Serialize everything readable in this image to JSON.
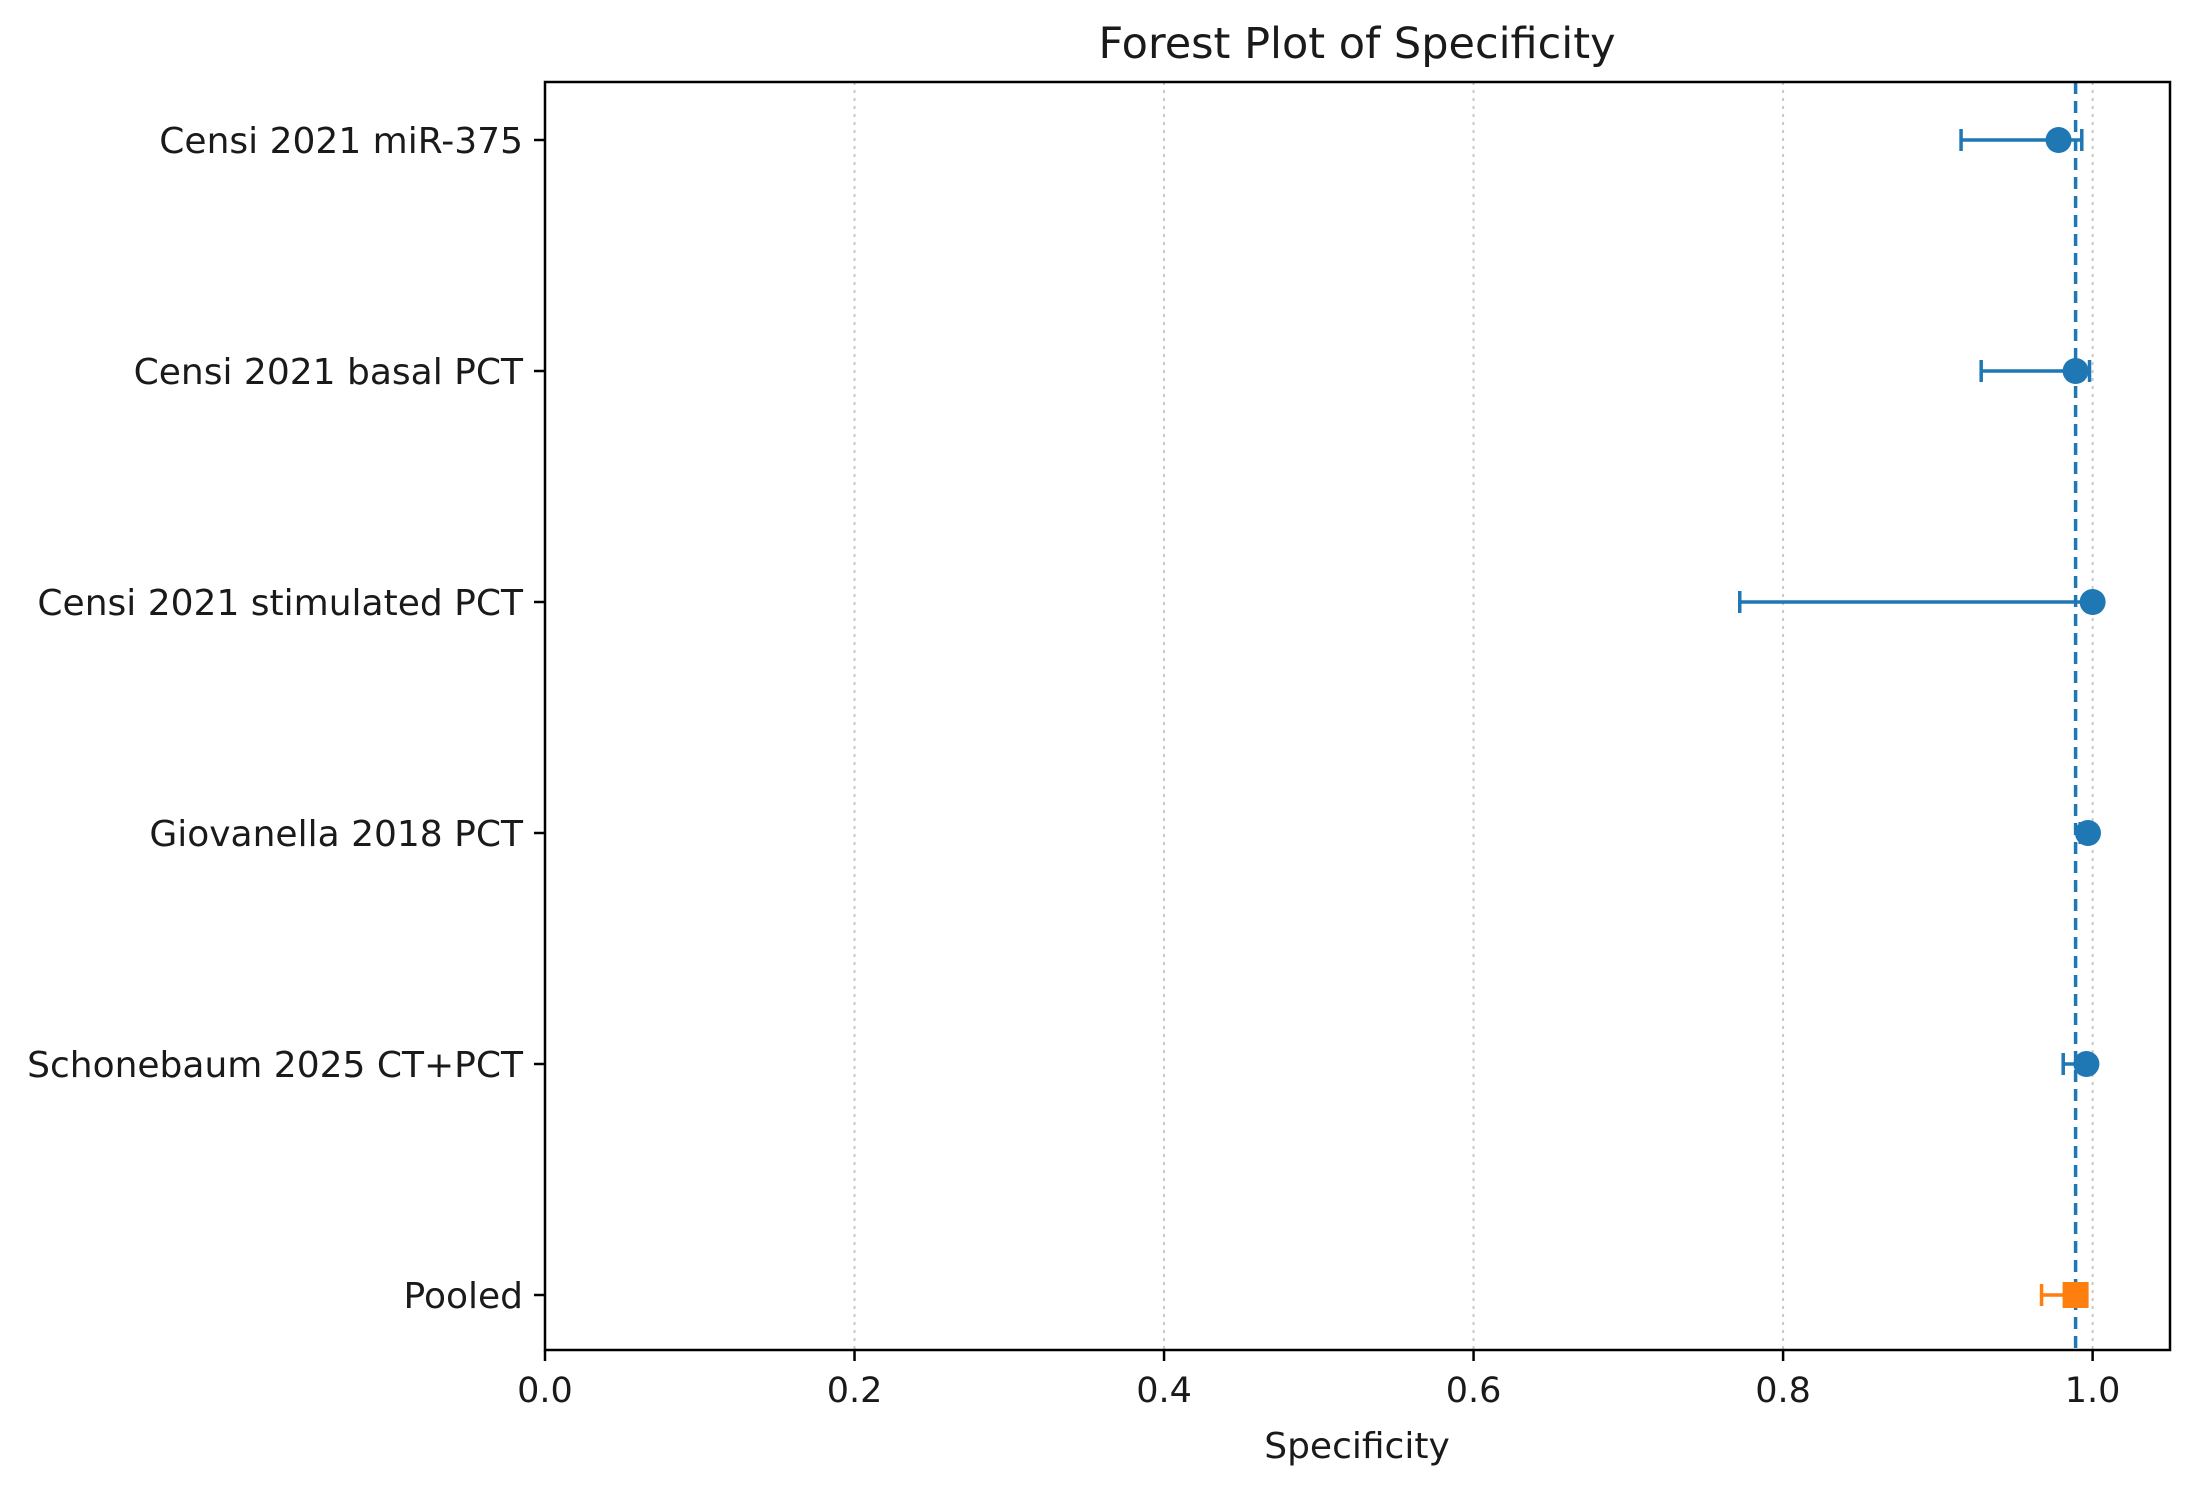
{
  "chart_data": {
    "type": "scatter",
    "subtype": "forest-plot",
    "title": "Forest Plot of Specificity",
    "xlabel": "Specificity",
    "ylabel": "",
    "xlim": [
      0.0,
      1.05
    ],
    "xticks": [
      "0.0",
      "0.2",
      "0.4",
      "0.6",
      "0.8",
      "1.0"
    ],
    "grid": "x-dotted",
    "pooled_reference_line": 0.989,
    "studies": [
      {
        "label": "Censi 2021 miR-375",
        "estimate": 0.978,
        "ci_low": 0.915,
        "ci_high": 0.993,
        "marker": "circle",
        "color": "#1f77b4"
      },
      {
        "label": "Censi 2021 basal PCT",
        "estimate": 0.989,
        "ci_low": 0.928,
        "ci_high": 0.998,
        "marker": "circle",
        "color": "#1f77b4"
      },
      {
        "label": "Censi 2021 stimulated PCT",
        "estimate": 1.0,
        "ci_low": 0.772,
        "ci_high": 1.0,
        "marker": "circle",
        "color": "#1f77b4"
      },
      {
        "label": "Giovanella 2018 PCT",
        "estimate": 0.997,
        "ci_low": 0.992,
        "ci_high": 0.999,
        "marker": "circle",
        "color": "#1f77b4"
      },
      {
        "label": "Schonebaum 2025 CT+PCT",
        "estimate": 0.996,
        "ci_low": 0.981,
        "ci_high": 0.999,
        "marker": "circle",
        "color": "#1f77b4"
      },
      {
        "label": "Pooled",
        "estimate": 0.989,
        "ci_low": 0.967,
        "ci_high": 0.996,
        "marker": "square",
        "color": "#ff7f0e"
      }
    ]
  }
}
